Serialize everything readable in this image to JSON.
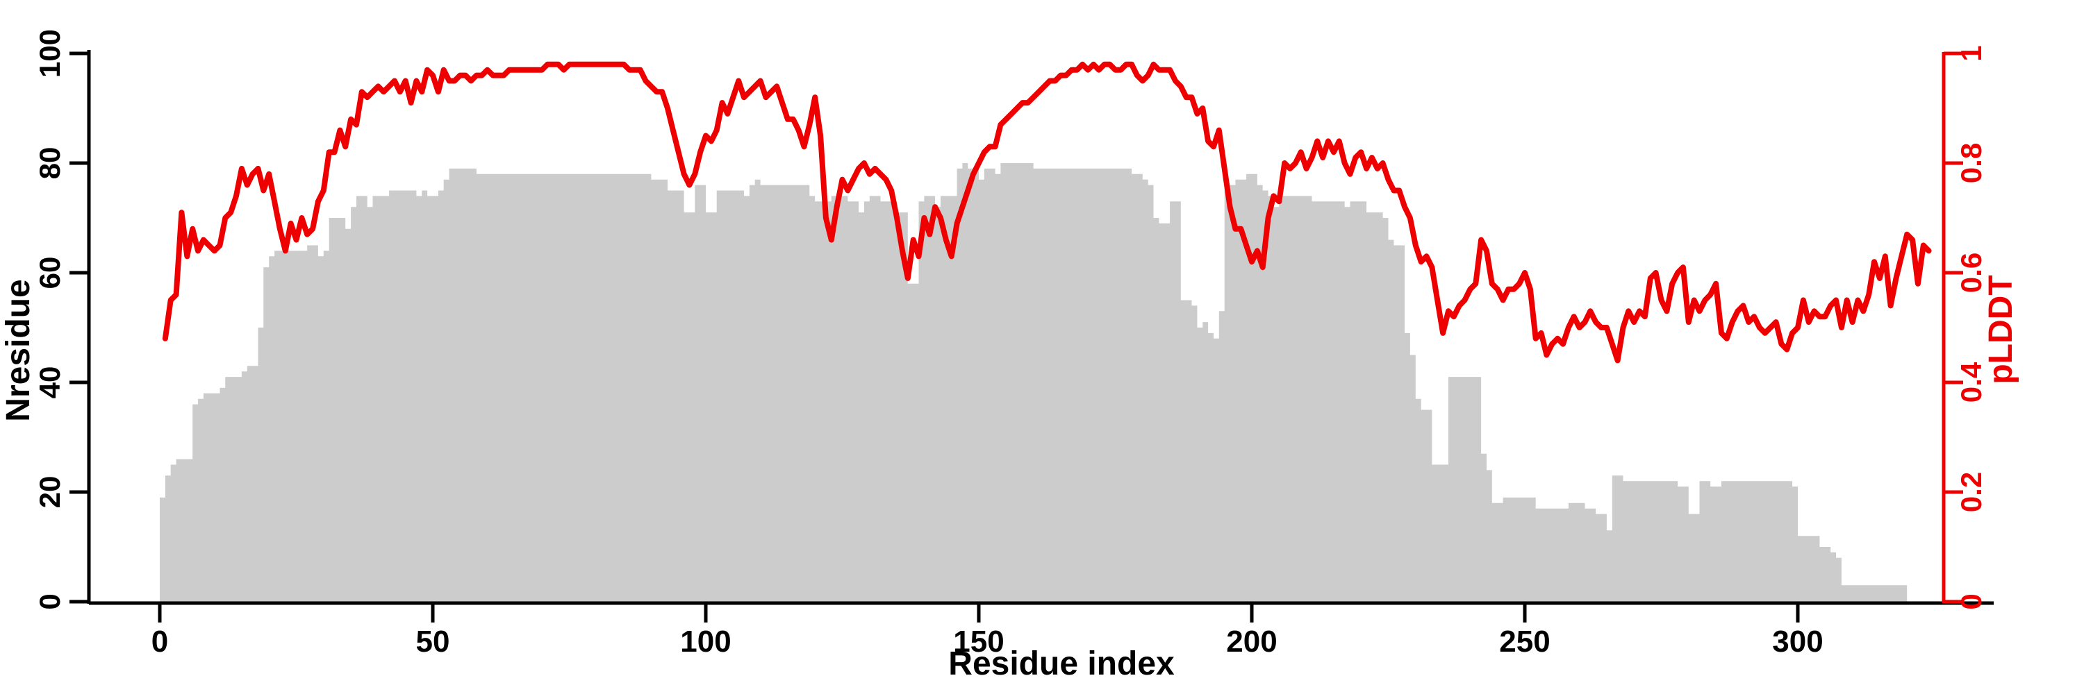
{
  "chart_data": {
    "type": "bar",
    "subtype": "dual-axis-bar-and-line",
    "title": "",
    "xlabel": "Residue index",
    "ylabel_left": "Nresidue",
    "ylabel_right": "pLDDT",
    "x_tick_labels": [
      "0",
      "50",
      "100",
      "150",
      "200",
      "250",
      "300"
    ],
    "x_ticks": [
      0,
      50,
      100,
      150,
      200,
      250,
      300
    ],
    "y_left_tick_labels": [
      "0",
      "20",
      "40",
      "60",
      "80",
      "100"
    ],
    "y_left_ticks": [
      0,
      20,
      40,
      60,
      80,
      100
    ],
    "y_right_tick_labels": [
      "0",
      "0.2",
      "0.4",
      "0.6",
      "0.8",
      "1"
    ],
    "y_right_ticks": [
      0,
      0.2,
      0.4,
      0.6,
      0.8,
      1
    ],
    "x_range": [
      0,
      325
    ],
    "y_left_range": [
      0,
      100
    ],
    "y_right_range": [
      0,
      1
    ],
    "grid": false,
    "legend": "none",
    "bar_color": "#cccccc",
    "line_color": "#ee0000",
    "axis_color": "#000000",
    "right_axis_color": "#ee0000",
    "series": [
      {
        "name": "Nresidue",
        "type": "bar",
        "axis": "left",
        "x_start": 0,
        "values": [
          19,
          23,
          25,
          26,
          26,
          26,
          36,
          37,
          38,
          38,
          38,
          39,
          41,
          41,
          41,
          42,
          43,
          43,
          50,
          61,
          63,
          64,
          64,
          64,
          64,
          64,
          64,
          65,
          65,
          63,
          64,
          70,
          70,
          70,
          68,
          72,
          74,
          74,
          72,
          74,
          74,
          74,
          75,
          75,
          75,
          75,
          75,
          74,
          75,
          74,
          74,
          75,
          77,
          79,
          79,
          79,
          79,
          79,
          78,
          78,
          78,
          78,
          78,
          78,
          78,
          78,
          78,
          78,
          78,
          78,
          78,
          78,
          78,
          78,
          78,
          78,
          78,
          78,
          78,
          78,
          78,
          78,
          78,
          78,
          78,
          78,
          78,
          78,
          78,
          78,
          77,
          77,
          77,
          75,
          75,
          75,
          71,
          71,
          76,
          76,
          71,
          71,
          75,
          75,
          75,
          75,
          75,
          74,
          76,
          77,
          76,
          76,
          76,
          76,
          76,
          76,
          76,
          76,
          76,
          74,
          73,
          73,
          73,
          74,
          74,
          74,
          73,
          73,
          71,
          73,
          74,
          74,
          73,
          73,
          73,
          71,
          71,
          58,
          58,
          73,
          74,
          74,
          72,
          74,
          74,
          74,
          79,
          80,
          79,
          79,
          77,
          79,
          79,
          78,
          80,
          80,
          80,
          80,
          80,
          80,
          79,
          79,
          79,
          79,
          79,
          79,
          79,
          79,
          79,
          79,
          79,
          79,
          79,
          79,
          79,
          79,
          79,
          79,
          78,
          78,
          77,
          76,
          70,
          69,
          69,
          73,
          73,
          55,
          55,
          54,
          50,
          51,
          49,
          48,
          53,
          76,
          76,
          77,
          77,
          78,
          78,
          76,
          75,
          74,
          72,
          74,
          74,
          74,
          74,
          74,
          74,
          73,
          73,
          73,
          73,
          73,
          73,
          72,
          73,
          73,
          73,
          71,
          71,
          71,
          70,
          66,
          65,
          65,
          49,
          45,
          37,
          35,
          35,
          25,
          25,
          25,
          41,
          41,
          41,
          41,
          41,
          41,
          27,
          24,
          18,
          18,
          19,
          19,
          19,
          19,
          19,
          19,
          17,
          17,
          17,
          17,
          17,
          17,
          18,
          18,
          18,
          17,
          17,
          16,
          16,
          13,
          23,
          23,
          22,
          22,
          22,
          22,
          22,
          22,
          22,
          22,
          22,
          22,
          21,
          21,
          16,
          16,
          22,
          22,
          21,
          21,
          22,
          22,
          22,
          22,
          22,
          22,
          22,
          22,
          22,
          22,
          22,
          22,
          22,
          21,
          12,
          12,
          12,
          12,
          10,
          10,
          9,
          8,
          3,
          3,
          3,
          3,
          3,
          3,
          3,
          3,
          3,
          3,
          3,
          3
        ]
      },
      {
        "name": "pLDDT",
        "type": "line",
        "axis": "right",
        "x_start": 1,
        "values": [
          0.48,
          0.55,
          0.56,
          0.71,
          0.63,
          0.68,
          0.64,
          0.66,
          0.65,
          0.64,
          0.65,
          0.7,
          0.71,
          0.74,
          0.79,
          0.76,
          0.78,
          0.79,
          0.75,
          0.78,
          0.73,
          0.68,
          0.64,
          0.69,
          0.66,
          0.7,
          0.67,
          0.68,
          0.73,
          0.75,
          0.82,
          0.82,
          0.86,
          0.83,
          0.88,
          0.87,
          0.93,
          0.92,
          0.93,
          0.94,
          0.93,
          0.94,
          0.95,
          0.93,
          0.95,
          0.91,
          0.95,
          0.93,
          0.97,
          0.96,
          0.93,
          0.97,
          0.95,
          0.95,
          0.96,
          0.96,
          0.95,
          0.96,
          0.96,
          0.97,
          0.96,
          0.96,
          0.96,
          0.97,
          0.97,
          0.97,
          0.97,
          0.97,
          0.97,
          0.97,
          0.98,
          0.98,
          0.98,
          0.97,
          0.98,
          0.98,
          0.98,
          0.98,
          0.98,
          0.98,
          0.98,
          0.98,
          0.98,
          0.98,
          0.98,
          0.97,
          0.97,
          0.97,
          0.95,
          0.94,
          0.93,
          0.93,
          0.9,
          0.86,
          0.82,
          0.78,
          0.76,
          0.78,
          0.82,
          0.85,
          0.84,
          0.86,
          0.91,
          0.89,
          0.92,
          0.95,
          0.92,
          0.93,
          0.94,
          0.95,
          0.92,
          0.93,
          0.94,
          0.91,
          0.88,
          0.88,
          0.86,
          0.83,
          0.87,
          0.92,
          0.85,
          0.7,
          0.66,
          0.72,
          0.77,
          0.75,
          0.77,
          0.79,
          0.8,
          0.78,
          0.79,
          0.78,
          0.77,
          0.75,
          0.7,
          0.64,
          0.59,
          0.66,
          0.63,
          0.7,
          0.67,
          0.72,
          0.7,
          0.66,
          0.63,
          0.69,
          0.72,
          0.75,
          0.78,
          0.8,
          0.82,
          0.83,
          0.83,
          0.87,
          0.88,
          0.89,
          0.9,
          0.91,
          0.91,
          0.92,
          0.93,
          0.94,
          0.95,
          0.95,
          0.96,
          0.96,
          0.97,
          0.97,
          0.98,
          0.97,
          0.98,
          0.97,
          0.98,
          0.98,
          0.97,
          0.97,
          0.98,
          0.98,
          0.96,
          0.95,
          0.96,
          0.98,
          0.97,
          0.97,
          0.97,
          0.95,
          0.94,
          0.92,
          0.92,
          0.89,
          0.9,
          0.84,
          0.83,
          0.86,
          0.79,
          0.72,
          0.68,
          0.68,
          0.65,
          0.62,
          0.64,
          0.61,
          0.7,
          0.74,
          0.73,
          0.8,
          0.79,
          0.8,
          0.82,
          0.79,
          0.81,
          0.84,
          0.81,
          0.84,
          0.82,
          0.84,
          0.8,
          0.78,
          0.81,
          0.82,
          0.79,
          0.81,
          0.79,
          0.8,
          0.77,
          0.75,
          0.75,
          0.72,
          0.7,
          0.65,
          0.62,
          0.63,
          0.61,
          0.55,
          0.49,
          0.53,
          0.52,
          0.54,
          0.55,
          0.57,
          0.58,
          0.66,
          0.64,
          0.58,
          0.57,
          0.55,
          0.57,
          0.57,
          0.58,
          0.6,
          0.57,
          0.48,
          0.49,
          0.45,
          0.47,
          0.48,
          0.47,
          0.5,
          0.52,
          0.5,
          0.51,
          0.53,
          0.51,
          0.5,
          0.5,
          0.47,
          0.44,
          0.5,
          0.53,
          0.51,
          0.53,
          0.52,
          0.59,
          0.6,
          0.55,
          0.53,
          0.58,
          0.6,
          0.61,
          0.51,
          0.55,
          0.53,
          0.55,
          0.56,
          0.58,
          0.49,
          0.48,
          0.51,
          0.53,
          0.54,
          0.51,
          0.52,
          0.5,
          0.49,
          0.5,
          0.51,
          0.47,
          0.46,
          0.49,
          0.5,
          0.55,
          0.51,
          0.53,
          0.52,
          0.52,
          0.54,
          0.55,
          0.5,
          0.55,
          0.51,
          0.55,
          0.53,
          0.56,
          0.62,
          0.59,
          0.63,
          0.54,
          0.59,
          0.63,
          0.67,
          0.66,
          0.58,
          0.65,
          0.64
        ]
      }
    ]
  }
}
